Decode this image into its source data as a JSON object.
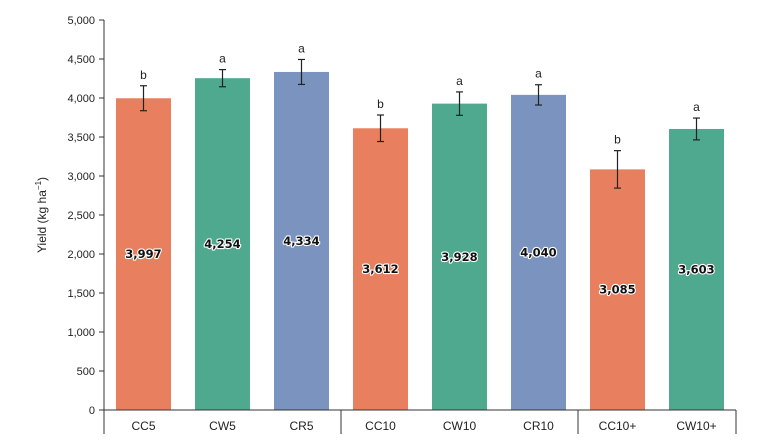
{
  "chart_data": {
    "type": "bar",
    "title": "",
    "xlabel": "",
    "ylabel_main": "Yield (kg ha",
    "ylabel_sup": "−1",
    "ylabel_close": ")",
    "ylim": [
      0,
      5000
    ],
    "yticks": [
      0,
      500,
      1000,
      1500,
      2000,
      2500,
      3000,
      3500,
      4000,
      4500,
      5000
    ],
    "ytick_labels": [
      "0",
      "500",
      "1,000",
      "1,500",
      "2,000",
      "2,500",
      "3,000",
      "3,500",
      "4,000",
      "4,500",
      "5,000"
    ],
    "categories": [
      "CC5",
      "CW5",
      "CR5",
      "CC10",
      "CW10",
      "CR10",
      "CC10+",
      "CW10+"
    ],
    "values": [
      3997,
      4254,
      4334,
      3612,
      3928,
      4040,
      3085,
      3603
    ],
    "value_labels": [
      "3,997",
      "4,254",
      "4,334",
      "3,612",
      "3,928",
      "4,040",
      "3,085",
      "3,603"
    ],
    "errors": [
      160,
      110,
      160,
      170,
      150,
      130,
      240,
      140
    ],
    "significance": [
      "b",
      "a",
      "a",
      "b",
      "a",
      "a",
      "b",
      "a"
    ],
    "bar_colors": [
      "#e8805f",
      "#4ea98f",
      "#7b93bf",
      "#e8805f",
      "#4ea98f",
      "#7b93bf",
      "#e8805f",
      "#4ea98f"
    ],
    "group_sizes": [
      3,
      3,
      2
    ]
  }
}
